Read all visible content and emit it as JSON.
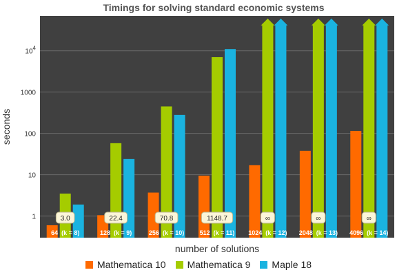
{
  "chart_data": {
    "type": "bar",
    "title": "Timings for solving standard economic systems",
    "xlabel": "number of solutions",
    "ylabel": "seconds",
    "y_scale": "log",
    "ylim": [
      0.3,
      70000
    ],
    "y_ticks": [
      {
        "value": 1,
        "label": "1"
      },
      {
        "value": 10,
        "label": "10"
      },
      {
        "value": 100,
        "label": "100"
      },
      {
        "value": 1000,
        "label": "1000"
      },
      {
        "value": 10000,
        "label": "10",
        "sup": "4"
      }
    ],
    "categories": [
      "64  (k = 8)",
      "128  (k = 9)",
      "256  (k = 10)",
      "512  (k = 11)",
      "1024  (k = 12)",
      "2048  (k = 13)",
      "4096  (k = 14)"
    ],
    "series": [
      {
        "name": "Mathematica 10",
        "color": "#ff6a00",
        "values": [
          0.6,
          1.05,
          3.7,
          9.5,
          17,
          38,
          115
        ],
        "infinite": [
          false,
          false,
          false,
          false,
          false,
          false,
          false
        ]
      },
      {
        "name": "Mathematica 9",
        "color": "#a5cc00",
        "values": [
          3.5,
          58,
          450,
          7000,
          null,
          null,
          null
        ],
        "infinite": [
          false,
          false,
          false,
          false,
          true,
          true,
          true
        ]
      },
      {
        "name": "Maple 18",
        "color": "#1ab3e0",
        "values": [
          1.9,
          24,
          280,
          11000,
          null,
          null,
          null
        ],
        "infinite": [
          false,
          false,
          false,
          false,
          true,
          true,
          true
        ]
      }
    ],
    "infinity_symbol": "∞",
    "ratio_labels": [
      "3.0",
      "22.4",
      "70.8",
      "1148.7",
      "∞",
      "∞",
      "∞"
    ],
    "grid": true,
    "background_color": "#404040",
    "legend_position": "bottom"
  }
}
